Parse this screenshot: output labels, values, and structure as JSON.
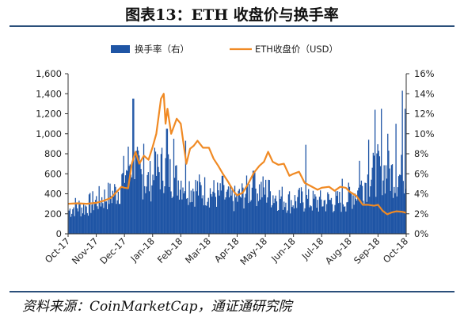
{
  "title": "图表13：ETH 收盘价与换手率",
  "source": "资料来源：CoinMarketCap，通证通研究院",
  "chart_data": {
    "type": "bar+line",
    "legend_position": "top-center",
    "grid": false,
    "x_ticks": [
      "Oct-17",
      "Nov-17",
      "Dec-17",
      "Jan-18",
      "Feb-18",
      "Mar-18",
      "Apr-18",
      "May-18",
      "Jun-18",
      "Jul-18",
      "Aug-18",
      "Sep-18",
      "Oct-18"
    ],
    "y_left": {
      "ticks": [
        "0",
        "200",
        "400",
        "600",
        "800",
        "1,000",
        "1,200",
        "1,400",
        "1,600"
      ],
      "lim": [
        0,
        1600
      ]
    },
    "y_right": {
      "ticks": [
        "0%",
        "2%",
        "4%",
        "6%",
        "8%",
        "10%",
        "12%",
        "14%",
        "16%"
      ],
      "lim": [
        0,
        16
      ]
    },
    "series": [
      {
        "name": "换手率（右）",
        "kind": "bar",
        "axis": "right",
        "color": "#1f55a5",
        "points": [
          [
            "Oct-17",
            2.5
          ],
          [
            "Oct-17+8",
            3.0
          ],
          [
            "Oct-17+16",
            2.8
          ],
          [
            "Nov-17",
            3.6
          ],
          [
            "Nov-17+8",
            3.9
          ],
          [
            "Nov-17+16",
            4.2
          ],
          [
            "Nov-17+24",
            4.8
          ],
          [
            "Dec-17",
            6.5
          ],
          [
            "Dec-17+6",
            8.0
          ],
          [
            "Dec-17+12",
            7.0
          ],
          [
            "Dec-17+18",
            6.2
          ],
          [
            "Dec-17+24",
            5.5
          ],
          [
            "Jan-18",
            6.0
          ],
          [
            "Jan-18+6",
            6.8
          ],
          [
            "Jan-18+12",
            7.2
          ],
          [
            "Jan-18+18",
            6.4
          ],
          [
            "Jan-18+24",
            5.8
          ],
          [
            "Feb-18",
            5.8
          ],
          [
            "Feb-18+8",
            5.2
          ],
          [
            "Feb-18+16",
            4.8
          ],
          [
            "Mar-18",
            4.6
          ],
          [
            "Mar-18+8",
            4.2
          ],
          [
            "Mar-18+16",
            4.0
          ],
          [
            "Mar-18+24",
            3.7
          ],
          [
            "Apr-18",
            3.8
          ],
          [
            "Apr-18+8",
            4.4
          ],
          [
            "Apr-18+16",
            4.9
          ],
          [
            "May-18",
            4.6
          ],
          [
            "May-18+8",
            4.2
          ],
          [
            "May-18+16",
            3.9
          ],
          [
            "May-18+24",
            3.6
          ],
          [
            "Jun-18",
            3.5
          ],
          [
            "Jun-18+8",
            3.7
          ],
          [
            "Jun-18+16",
            3.5
          ],
          [
            "Jul-18",
            3.4
          ],
          [
            "Jul-18+8",
            3.6
          ],
          [
            "Jul-18+16",
            3.4
          ],
          [
            "Jul-18+24",
            3.7
          ],
          [
            "Aug-18",
            4.1
          ],
          [
            "Aug-18+8",
            4.6
          ],
          [
            "Aug-18+16",
            5.6
          ],
          [
            "Aug-18+24",
            6.3
          ],
          [
            "Sep-18",
            7.0
          ],
          [
            "Sep-18+8",
            6.7
          ],
          [
            "Sep-18+16",
            6.4
          ],
          [
            "Sep-18+24",
            6.2
          ],
          [
            "Oct-18",
            6.9
          ]
        ],
        "spikes": [
          [
            "Nov-17+12",
            5.1
          ],
          [
            "Dec-17+9",
            13.5
          ],
          [
            "Dec-17+20",
            9.0
          ],
          [
            "Jan-18+2",
            8.6
          ],
          [
            "Jan-18+15",
            10.5
          ],
          [
            "Jan-18+22",
            9.5
          ],
          [
            "Feb-18+5",
            9.3
          ],
          [
            "Mar-18+14",
            5.8
          ],
          [
            "Apr-18+17",
            6.3
          ],
          [
            "May-18+3",
            5.4
          ],
          [
            "Jun-18+13",
            8.9
          ],
          [
            "Jul-18+22",
            5.5
          ],
          [
            "Aug-18+10",
            7.3
          ],
          [
            "Aug-18+20",
            9.4
          ],
          [
            "Aug-18+27",
            12.4
          ],
          [
            "Sep-18+3",
            12.5
          ],
          [
            "Sep-18+10",
            10.0
          ],
          [
            "Sep-18+19",
            11.0
          ],
          [
            "Sep-18+26",
            14.3
          ],
          [
            "Sep-18+29",
            12.5
          ]
        ]
      },
      {
        "name": "ETH收盘价（USD）",
        "kind": "line",
        "axis": "left",
        "color": "#f08a24",
        "points": [
          [
            "Oct-17",
            300
          ],
          [
            "Oct-17+10",
            305
          ],
          [
            "Oct-17+20",
            300
          ],
          [
            "Nov-17",
            310
          ],
          [
            "Nov-17+8",
            330
          ],
          [
            "Nov-17+16",
            360
          ],
          [
            "Nov-17+22",
            420
          ],
          [
            "Nov-17+27",
            470
          ],
          [
            "Dec-17",
            460
          ],
          [
            "Dec-17+4",
            455
          ],
          [
            "Dec-17+8",
            700
          ],
          [
            "Dec-17+12",
            820
          ],
          [
            "Dec-17+16",
            700
          ],
          [
            "Dec-17+21",
            780
          ],
          [
            "Dec-17+26",
            740
          ],
          [
            "Jan-18",
            870
          ],
          [
            "Jan-18+4",
            1000
          ],
          [
            "Jan-18+9",
            1350
          ],
          [
            "Jan-18+12",
            1400
          ],
          [
            "Jan-18+14",
            1100
          ],
          [
            "Jan-18+16",
            1250
          ],
          [
            "Jan-18+20",
            1000
          ],
          [
            "Jan-18+26",
            1150
          ],
          [
            "Feb-18",
            1100
          ],
          [
            "Feb-18+3",
            900
          ],
          [
            "Feb-18+6",
            700
          ],
          [
            "Feb-18+10",
            850
          ],
          [
            "Feb-18+14",
            880
          ],
          [
            "Feb-18+18",
            930
          ],
          [
            "Feb-18+24",
            860
          ],
          [
            "Mar-18",
            860
          ],
          [
            "Mar-18+5",
            750
          ],
          [
            "Mar-18+10",
            680
          ],
          [
            "Mar-18+15",
            600
          ],
          [
            "Mar-18+20",
            530
          ],
          [
            "Mar-18+27",
            420
          ],
          [
            "Apr-18",
            385
          ],
          [
            "Apr-18+6",
            410
          ],
          [
            "Apr-18+12",
            500
          ],
          [
            "Apr-18+18",
            610
          ],
          [
            "Apr-18+24",
            680
          ],
          [
            "Apr-18+29",
            720
          ],
          [
            "May-18+3",
            820
          ],
          [
            "May-18+8",
            720
          ],
          [
            "May-18+14",
            690
          ],
          [
            "May-18+20",
            700
          ],
          [
            "May-18+26",
            580
          ],
          [
            "Jun-18",
            600
          ],
          [
            "Jun-18+6",
            620
          ],
          [
            "Jun-18+12",
            510
          ],
          [
            "Jun-18+18",
            480
          ],
          [
            "Jun-18+26",
            440
          ],
          [
            "Jul-18",
            460
          ],
          [
            "Jul-18+8",
            470
          ],
          [
            "Jul-18+14",
            430
          ],
          [
            "Jul-18+20",
            470
          ],
          [
            "Jul-18+26",
            460
          ],
          [
            "Aug-18",
            420
          ],
          [
            "Aug-18+7",
            380
          ],
          [
            "Aug-18+14",
            290
          ],
          [
            "Aug-18+20",
            290
          ],
          [
            "Aug-18+26",
            280
          ],
          [
            "Sep-18",
            290
          ],
          [
            "Sep-18+5",
            230
          ],
          [
            "Sep-18+10",
            195
          ],
          [
            "Sep-18+15",
            215
          ],
          [
            "Sep-18+20",
            225
          ],
          [
            "Sep-18+26",
            220
          ],
          [
            "Oct-18",
            210
          ]
        ]
      }
    ]
  }
}
